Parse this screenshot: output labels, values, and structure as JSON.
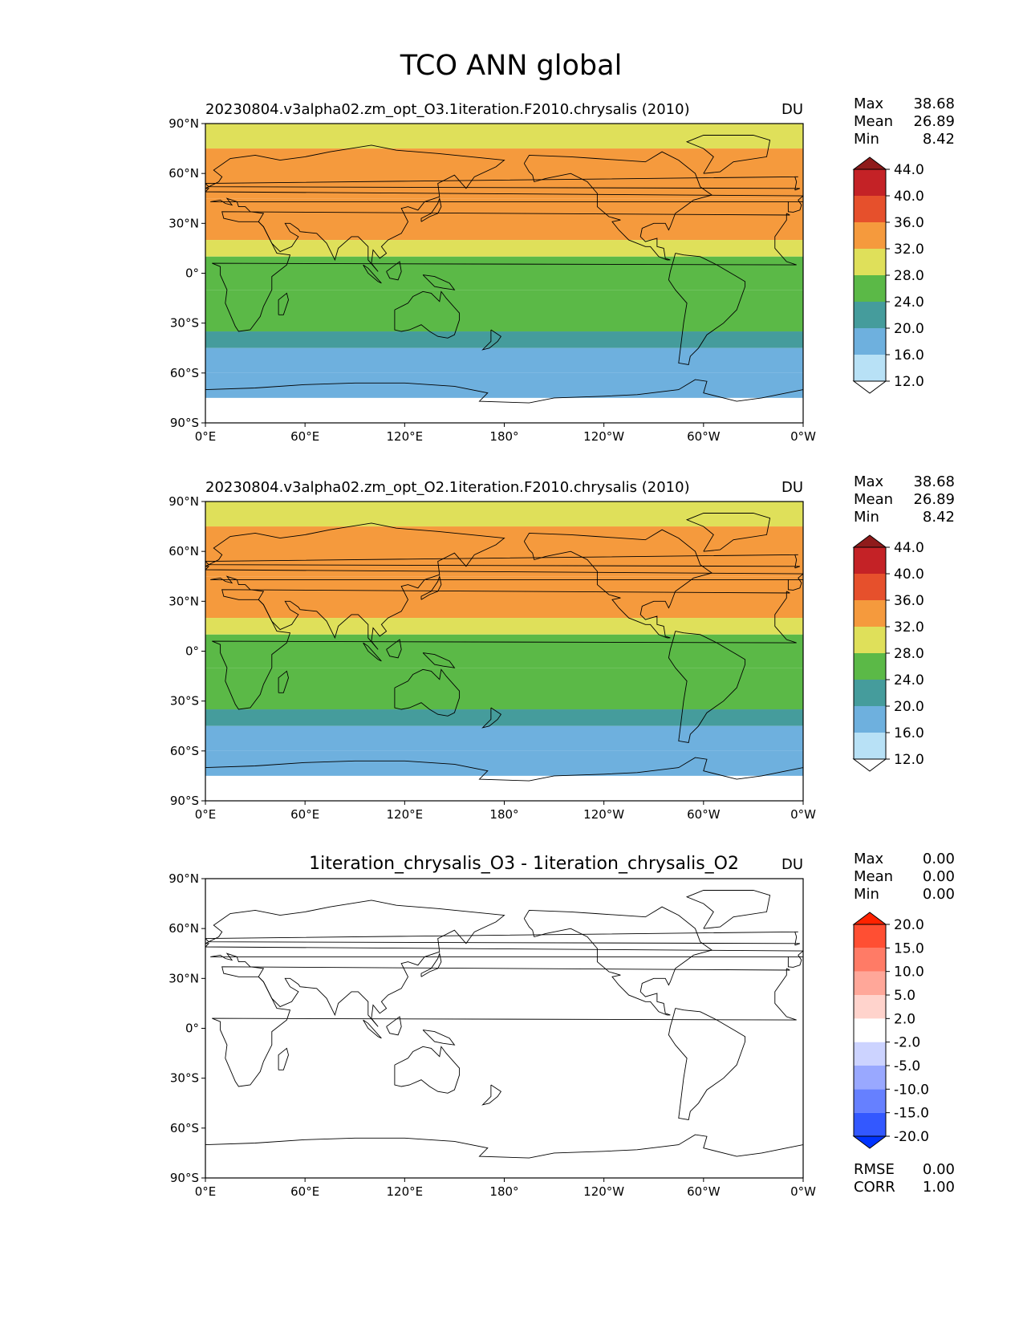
{
  "figure": {
    "title": "TCO ANN global"
  },
  "chart_data": [
    {
      "type": "heatmap",
      "title": "20230804.v3alpha02.zm_opt_O3.1iteration.F2010.chrysalis (2010)",
      "units": "DU",
      "xticks": [
        "0°E",
        "60°E",
        "120°E",
        "180°",
        "120°W",
        "60°W",
        "0°W"
      ],
      "yticks": [
        "90°N",
        "60°N",
        "30°N",
        "0°",
        "30°S",
        "60°S",
        "90°S"
      ],
      "xlim": [
        0,
        360
      ],
      "ylim": [
        -90,
        90
      ],
      "stats": [
        {
          "label": "Max",
          "value": "38.68"
        },
        {
          "label": "Mean",
          "value": "26.89"
        },
        {
          "label": "Min",
          "value": "8.42"
        }
      ],
      "colorbar": {
        "levels": [
          "12.0",
          "16.0",
          "20.0",
          "24.0",
          "28.0",
          "32.0",
          "36.0",
          "40.0",
          "44.0"
        ],
        "colors": [
          "#ffffff",
          "#b8e1f6",
          "#6eb0de",
          "#459c9c",
          "#5bb947",
          "#dfe05a",
          "#f59a3d",
          "#e6502c",
          "#c42226",
          "#8f1b1b"
        ],
        "extend": "both"
      },
      "field_bands": [
        {
          "lat": [
            75,
            90
          ],
          "color": "#dfe05a"
        },
        {
          "lat": [
            45,
            75
          ],
          "color": "#f59a3d"
        },
        {
          "lat": [
            20,
            45
          ],
          "color": "#f59a3d"
        },
        {
          "lat": [
            10,
            20
          ],
          "color": "#dfe05a"
        },
        {
          "lat": [
            -10,
            10
          ],
          "color": "#5bb947"
        },
        {
          "lat": [
            -35,
            -10
          ],
          "color": "#5bb947"
        },
        {
          "lat": [
            -45,
            -35
          ],
          "color": "#459c9c"
        },
        {
          "lat": [
            -60,
            -45
          ],
          "color": "#6eb0de"
        },
        {
          "lat": [
            -75,
            -60
          ],
          "color": "#6eb0de"
        },
        {
          "lat": [
            -90,
            -75
          ],
          "color": "#ffffff"
        }
      ]
    },
    {
      "type": "heatmap",
      "title": "20230804.v3alpha02.zm_opt_O2.1iteration.F2010.chrysalis (2010)",
      "units": "DU",
      "xticks": [
        "0°E",
        "60°E",
        "120°E",
        "180°",
        "120°W",
        "60°W",
        "0°W"
      ],
      "yticks": [
        "90°N",
        "60°N",
        "30°N",
        "0°",
        "30°S",
        "60°S",
        "90°S"
      ],
      "xlim": [
        0,
        360
      ],
      "ylim": [
        -90,
        90
      ],
      "stats": [
        {
          "label": "Max",
          "value": "38.68"
        },
        {
          "label": "Mean",
          "value": "26.89"
        },
        {
          "label": "Min",
          "value": "8.42"
        }
      ],
      "colorbar": {
        "levels": [
          "12.0",
          "16.0",
          "20.0",
          "24.0",
          "28.0",
          "32.0",
          "36.0",
          "40.0",
          "44.0"
        ],
        "colors": [
          "#ffffff",
          "#b8e1f6",
          "#6eb0de",
          "#459c9c",
          "#5bb947",
          "#dfe05a",
          "#f59a3d",
          "#e6502c",
          "#c42226",
          "#8f1b1b"
        ],
        "extend": "both"
      },
      "field_bands": [
        {
          "lat": [
            75,
            90
          ],
          "color": "#dfe05a"
        },
        {
          "lat": [
            45,
            75
          ],
          "color": "#f59a3d"
        },
        {
          "lat": [
            20,
            45
          ],
          "color": "#f59a3d"
        },
        {
          "lat": [
            10,
            20
          ],
          "color": "#dfe05a"
        },
        {
          "lat": [
            -10,
            10
          ],
          "color": "#5bb947"
        },
        {
          "lat": [
            -35,
            -10
          ],
          "color": "#5bb947"
        },
        {
          "lat": [
            -45,
            -35
          ],
          "color": "#459c9c"
        },
        {
          "lat": [
            -60,
            -45
          ],
          "color": "#6eb0de"
        },
        {
          "lat": [
            -75,
            -60
          ],
          "color": "#6eb0de"
        },
        {
          "lat": [
            -90,
            -75
          ],
          "color": "#ffffff"
        }
      ]
    },
    {
      "type": "heatmap",
      "title": "1iteration_chrysalis_O3 - 1iteration_chrysalis_O2",
      "units": "DU",
      "xticks": [
        "0°E",
        "60°E",
        "120°E",
        "180°",
        "120°W",
        "60°W",
        "0°W"
      ],
      "yticks": [
        "90°N",
        "60°N",
        "30°N",
        "0°",
        "30°S",
        "60°S",
        "90°S"
      ],
      "xlim": [
        0,
        360
      ],
      "ylim": [
        -90,
        90
      ],
      "stats": [
        {
          "label": "Max",
          "value": "0.00"
        },
        {
          "label": "Mean",
          "value": "0.00"
        },
        {
          "label": "Min",
          "value": "0.00"
        }
      ],
      "extra_stats": [
        {
          "label": "RMSE",
          "value": "0.00"
        },
        {
          "label": "CORR",
          "value": "1.00"
        }
      ],
      "colorbar": {
        "levels": [
          "-20.0",
          "-15.0",
          "-10.0",
          "-5.0",
          "-2.0",
          "2.0",
          "5.0",
          "10.0",
          "15.0",
          "20.0"
        ],
        "colors": [
          "#0033ff",
          "#3358ff",
          "#6680ff",
          "#99a8ff",
          "#ccd3ff",
          "#ffffff",
          "#ffd3cc",
          "#ffa799",
          "#ff7b66",
          "#ff4f33",
          "#ff2200"
        ],
        "extend": "both"
      },
      "field_bands": [
        {
          "lat": [
            -90,
            90
          ],
          "color": "#ffffff"
        }
      ]
    }
  ]
}
